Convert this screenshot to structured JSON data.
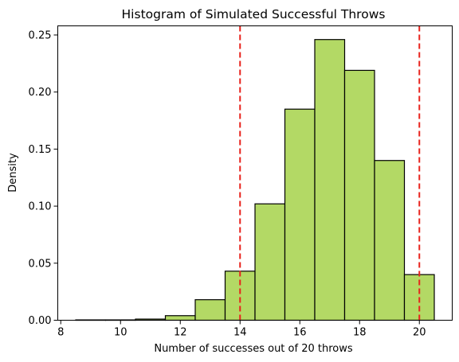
{
  "chart_data": {
    "type": "bar",
    "title": "Histogram of Simulated Successful Throws",
    "xlabel": "Number of successes out of 20 throws",
    "ylabel": "Density",
    "xlim": [
      7.9,
      21.1
    ],
    "ylim": [
      0,
      0.258
    ],
    "xticks": [
      8,
      10,
      12,
      14,
      16,
      18,
      20
    ],
    "yticks": [
      "0.00",
      "0.05",
      "0.10",
      "0.15",
      "0.20",
      "0.25"
    ],
    "bin_edges": [
      8.5,
      9.5,
      10.5,
      11.5,
      12.5,
      13.5,
      14.5,
      15.5,
      16.5,
      17.5,
      18.5,
      19.5,
      20.5
    ],
    "values": [
      0.0003,
      0.0003,
      0.001,
      0.004,
      0.018,
      0.043,
      0.102,
      0.185,
      0.246,
      0.219,
      0.14,
      0.04
    ],
    "bar_color": "#b3d965",
    "edge_color": "#000000",
    "vlines": [
      {
        "x": 14,
        "color": "#e8231d",
        "style": "dashed"
      },
      {
        "x": 20,
        "color": "#e8231d",
        "style": "dashed"
      }
    ],
    "grid": false
  }
}
